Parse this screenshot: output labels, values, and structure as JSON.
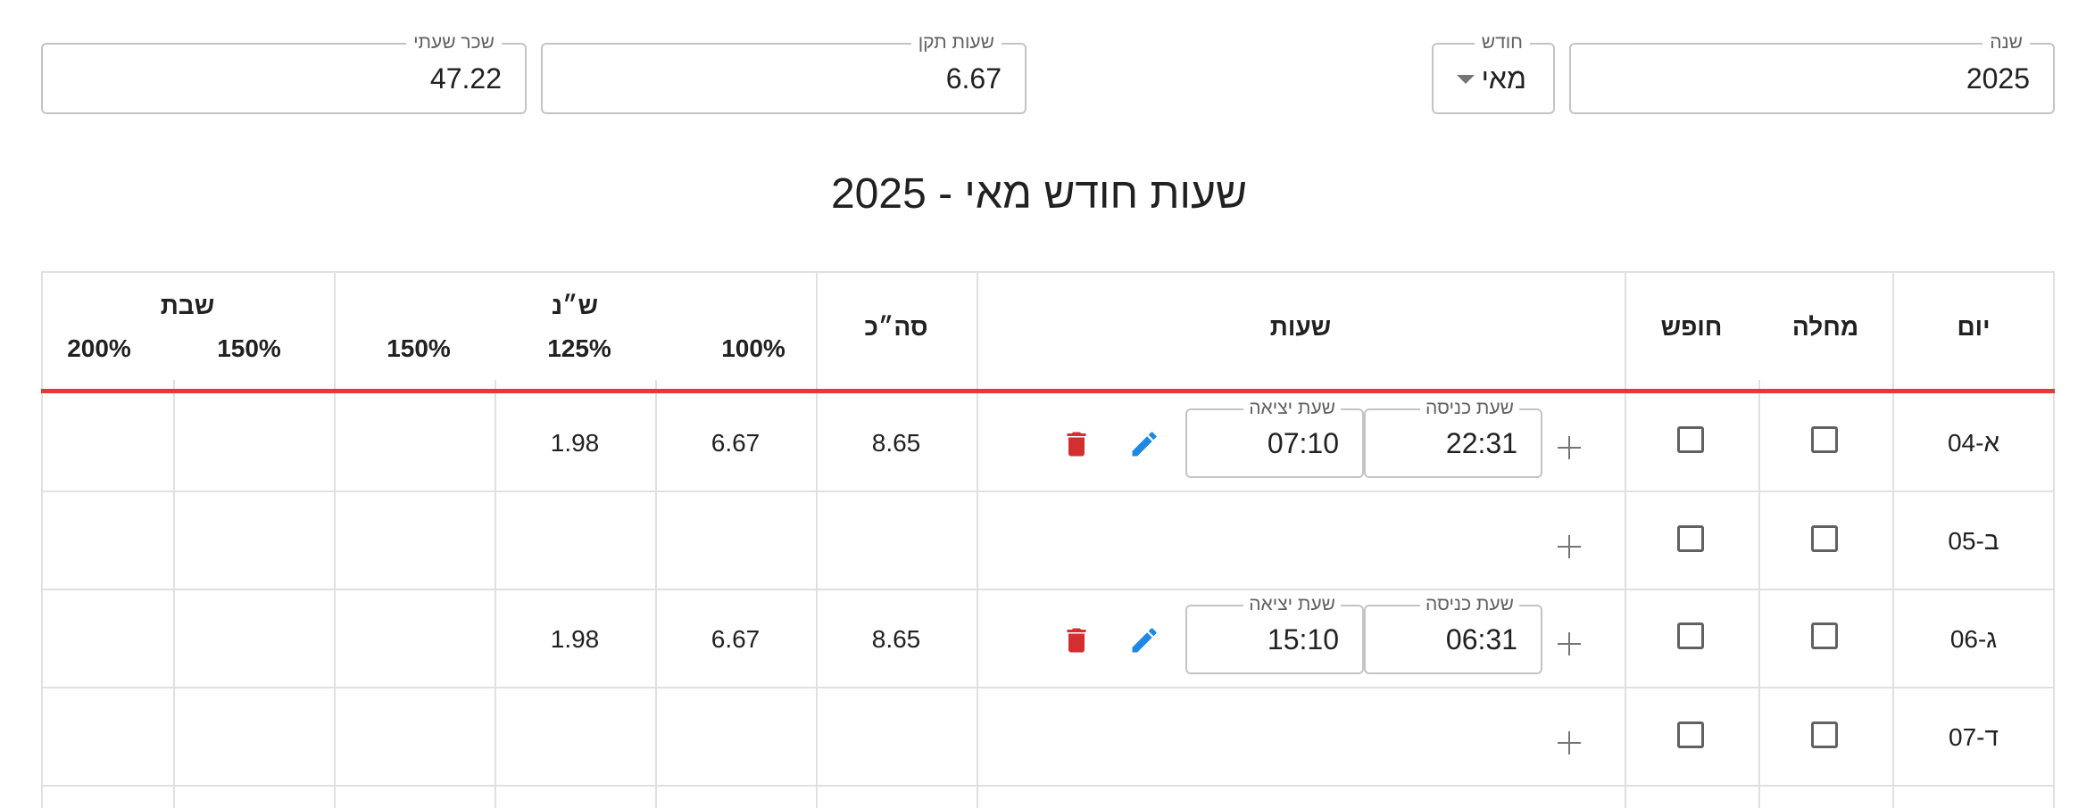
{
  "filters": {
    "hourly_wage": {
      "label": "שכר שעתי",
      "value": "47.22"
    },
    "standard_hours": {
      "label": "שעות תקן",
      "value": "6.67"
    },
    "month": {
      "label": "חודש",
      "value": "מאי"
    },
    "year": {
      "label": "שנה",
      "value": "2025"
    }
  },
  "page_title": "שעות חודש מאי - 2025",
  "table": {
    "headers": {
      "day": "יום",
      "sick": "מחלה",
      "vacation": "חופש",
      "hours": "שעות",
      "total": "סה״כ",
      "pct100": "100%",
      "weekday_group": "ש״נ",
      "weekday_125": "125%",
      "weekday_150": "150%",
      "shabbat_group": "שבת",
      "shabbat_150": "150%",
      "shabbat_200": "200%"
    },
    "entry_label": "שעת כניסה",
    "exit_label": "שעת יציאה",
    "rows": [
      {
        "day": "א-04",
        "sick": false,
        "vacation": false,
        "entry": "22:31",
        "exit": "07:10",
        "total": "8.65",
        "pct100": "6.67",
        "pct125": "1.98",
        "pct150": "",
        "shabbat150": "",
        "shabbat200": ""
      },
      {
        "day": "ב-05",
        "sick": false,
        "vacation": false,
        "entry": "",
        "exit": "",
        "total": "",
        "pct100": "",
        "pct125": "",
        "pct150": "",
        "shabbat150": "",
        "shabbat200": ""
      },
      {
        "day": "ג-06",
        "sick": false,
        "vacation": false,
        "entry": "06:31",
        "exit": "15:10",
        "total": "8.65",
        "pct100": "6.67",
        "pct125": "1.98",
        "pct150": "",
        "shabbat150": "",
        "shabbat200": ""
      },
      {
        "day": "ד-07",
        "sick": false,
        "vacation": false,
        "entry": "",
        "exit": "",
        "total": "",
        "pct100": "",
        "pct125": "",
        "pct150": "",
        "shabbat150": "",
        "shabbat200": ""
      }
    ]
  },
  "icons": {
    "add": "plus-icon",
    "edit": "pencil-icon",
    "delete": "trash-icon"
  },
  "colors": {
    "accent_line": "#e53935",
    "edit_icon": "#1e88e5",
    "delete_icon": "#d32f2f"
  }
}
